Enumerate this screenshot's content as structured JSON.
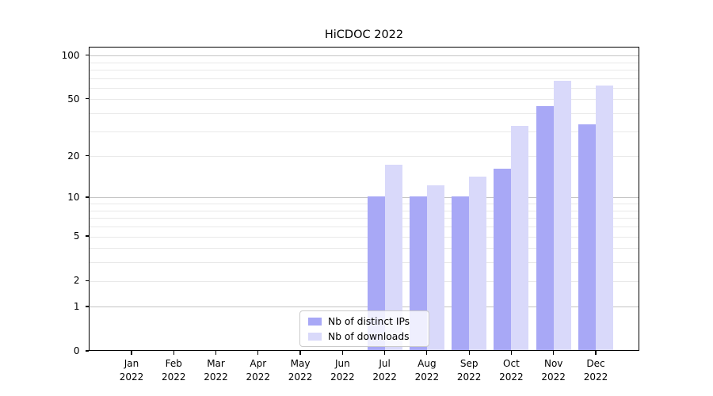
{
  "chart_data": {
    "type": "bar",
    "title": "HiCDOC 2022",
    "months": [
      "Jan",
      "Feb",
      "Mar",
      "Apr",
      "May",
      "Jun",
      "Jul",
      "Aug",
      "Sep",
      "Oct",
      "Nov",
      "Dec"
    ],
    "year": "2022",
    "categories": [
      "Jan 2022",
      "Feb 2022",
      "Mar 2022",
      "Apr 2022",
      "May 2022",
      "Jun 2022",
      "Jul 2022",
      "Aug 2022",
      "Sep 2022",
      "Oct 2022",
      "Nov 2022",
      "Dec 2022"
    ],
    "series": [
      {
        "name": "Nb of distinct IPs",
        "color": "#a8a8f6",
        "values": [
          0,
          0,
          0,
          0,
          0,
          0,
          10,
          10,
          10,
          16,
          44,
          33
        ]
      },
      {
        "name": "Nb of downloads",
        "color": "#d9d9fa",
        "values": [
          0,
          0,
          0,
          0,
          0,
          0,
          17,
          12,
          14,
          32,
          66,
          61
        ]
      }
    ],
    "y_scale": "log1p",
    "y_tick_values": [
      0,
      1,
      2,
      5,
      10,
      20,
      50,
      100
    ],
    "y_tick_labels": [
      "0",
      "1",
      "2",
      "5",
      "10",
      "20",
      "50",
      "100"
    ],
    "y_major_gridlines": [
      1,
      10,
      100
    ],
    "y_minor_gridlines": [
      2,
      3,
      4,
      5,
      6,
      7,
      8,
      9,
      20,
      30,
      40,
      50,
      60,
      70,
      80,
      90
    ],
    "ylim": [
      0,
      114
    ],
    "grid": true,
    "legend_position": "lower center",
    "colors": {
      "bar_distinct_ips": "#a8a8f6",
      "bar_downloads": "#d9d9fa",
      "major_grid": "#c4c4c4",
      "minor_grid": "#e9e9e9",
      "spine": "#000000",
      "background": "#ffffff",
      "text": "#000000"
    }
  }
}
